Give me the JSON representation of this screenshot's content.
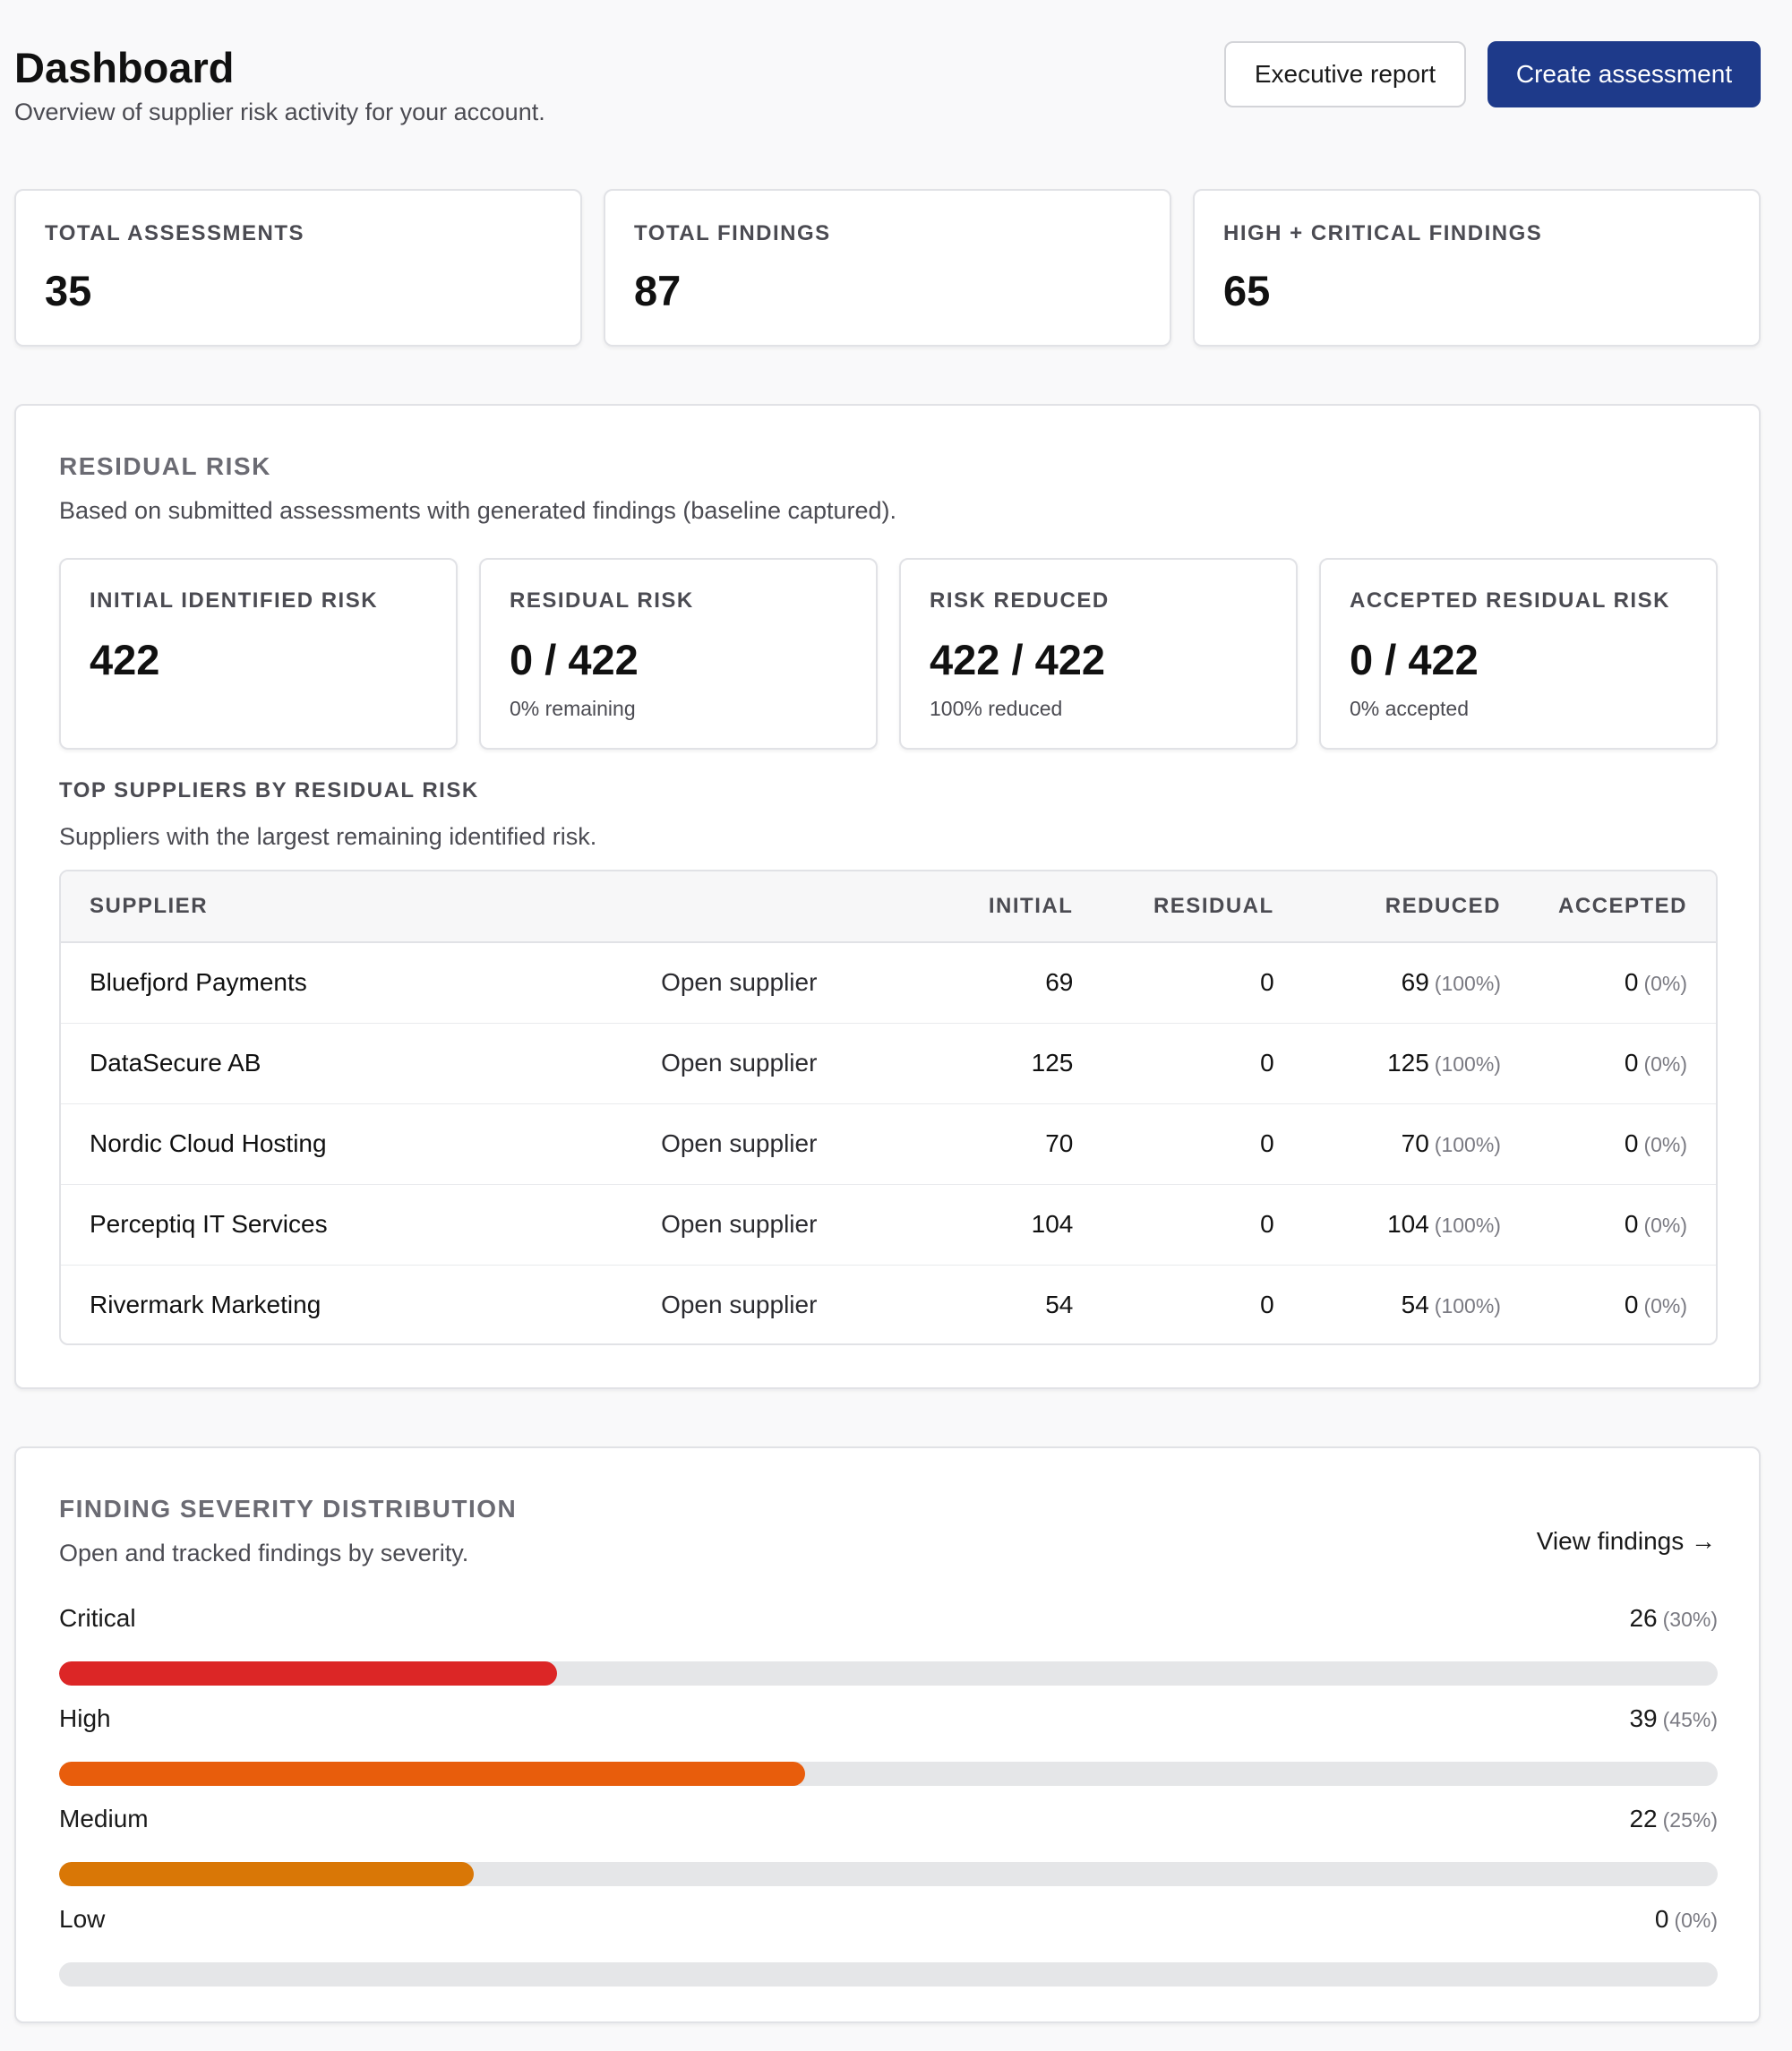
{
  "header": {
    "title": "Dashboard",
    "subtitle": "Overview of supplier risk activity for your account.",
    "executive_report_label": "Executive report",
    "create_assessment_label": "Create assessment"
  },
  "stats": [
    {
      "label": "TOTAL ASSESSMENTS",
      "value": "35"
    },
    {
      "label": "TOTAL FINDINGS",
      "value": "87"
    },
    {
      "label": "HIGH + CRITICAL FINDINGS",
      "value": "65"
    }
  ],
  "residual": {
    "title": "RESIDUAL RISK",
    "description": "Based on submitted assessments with generated findings (baseline captured).",
    "cards": [
      {
        "label": "INITIAL IDENTIFIED RISK",
        "value": "422",
        "sub": ""
      },
      {
        "label": "RESIDUAL RISK",
        "value": "0 / 422",
        "sub": "0% remaining"
      },
      {
        "label": "RISK REDUCED",
        "value": "422 / 422",
        "sub": "100% reduced"
      },
      {
        "label": "ACCEPTED RESIDUAL RISK",
        "value": "0 / 422",
        "sub": "0% accepted"
      }
    ],
    "top_title": "TOP SUPPLIERS BY RESIDUAL RISK",
    "top_description": "Suppliers with the largest remaining identified risk.",
    "columns": {
      "supplier": "SUPPLIER",
      "initial": "INITIAL",
      "residual": "RESIDUAL",
      "reduced": "REDUCED",
      "accepted": "ACCEPTED"
    },
    "rows": [
      {
        "supplier": "Bluefjord Payments",
        "action": "Open supplier",
        "initial": "69",
        "residual": "0",
        "reduced": "69",
        "reduced_pct": "(100%)",
        "accepted": "0",
        "accepted_pct": "(0%)"
      },
      {
        "supplier": "DataSecure AB",
        "action": "Open supplier",
        "initial": "125",
        "residual": "0",
        "reduced": "125",
        "reduced_pct": "(100%)",
        "accepted": "0",
        "accepted_pct": "(0%)"
      },
      {
        "supplier": "Nordic Cloud Hosting",
        "action": "Open supplier",
        "initial": "70",
        "residual": "0",
        "reduced": "70",
        "reduced_pct": "(100%)",
        "accepted": "0",
        "accepted_pct": "(0%)"
      },
      {
        "supplier": "Perceptiq IT Services",
        "action": "Open supplier",
        "initial": "104",
        "residual": "0",
        "reduced": "104",
        "reduced_pct": "(100%)",
        "accepted": "0",
        "accepted_pct": "(0%)"
      },
      {
        "supplier": "Rivermark Marketing",
        "action": "Open supplier",
        "initial": "54",
        "residual": "0",
        "reduced": "54",
        "reduced_pct": "(100%)",
        "accepted": "0",
        "accepted_pct": "(0%)"
      }
    ]
  },
  "severity": {
    "title": "FINDING SEVERITY DISTRIBUTION",
    "description": "Open and tracked findings by severity.",
    "view_link": "View findings →",
    "items": [
      {
        "label": "Critical",
        "count": "26",
        "pct": "(30%)",
        "fraction": 0.3,
        "color": "#dc2626"
      },
      {
        "label": "High",
        "count": "39",
        "pct": "(45%)",
        "fraction": 0.45,
        "color": "#e85d0c"
      },
      {
        "label": "Medium",
        "count": "22",
        "pct": "(25%)",
        "fraction": 0.25,
        "color": "#d97706"
      },
      {
        "label": "Low",
        "count": "0",
        "pct": "(0%)",
        "fraction": 0,
        "color": "#16a34a"
      }
    ]
  }
}
